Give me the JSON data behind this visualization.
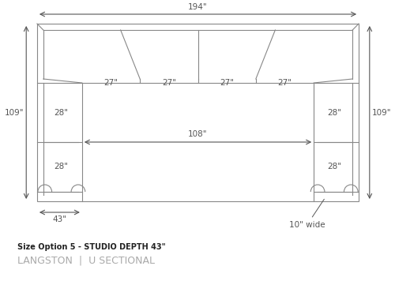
{
  "title_line1": "Size Option 5 - STUDIO DEPTH 43\"",
  "title_line2": "LANGSTON  |  U SECTIONAL",
  "bg_color": "#ffffff",
  "line_color": "#888888",
  "dim_color": "#555555",
  "overall_width_label": "194\"",
  "overall_height_label": "109\"",
  "center_width_label": "108\"",
  "left_depth_label": "43\"",
  "seat_labels": [
    "27\"",
    "27\"",
    "27\"",
    "27\""
  ],
  "left_seat_labels": [
    "28\"",
    "28\""
  ],
  "right_seat_labels": [
    "28\"",
    "28\""
  ],
  "leg_label": "10\" wide"
}
